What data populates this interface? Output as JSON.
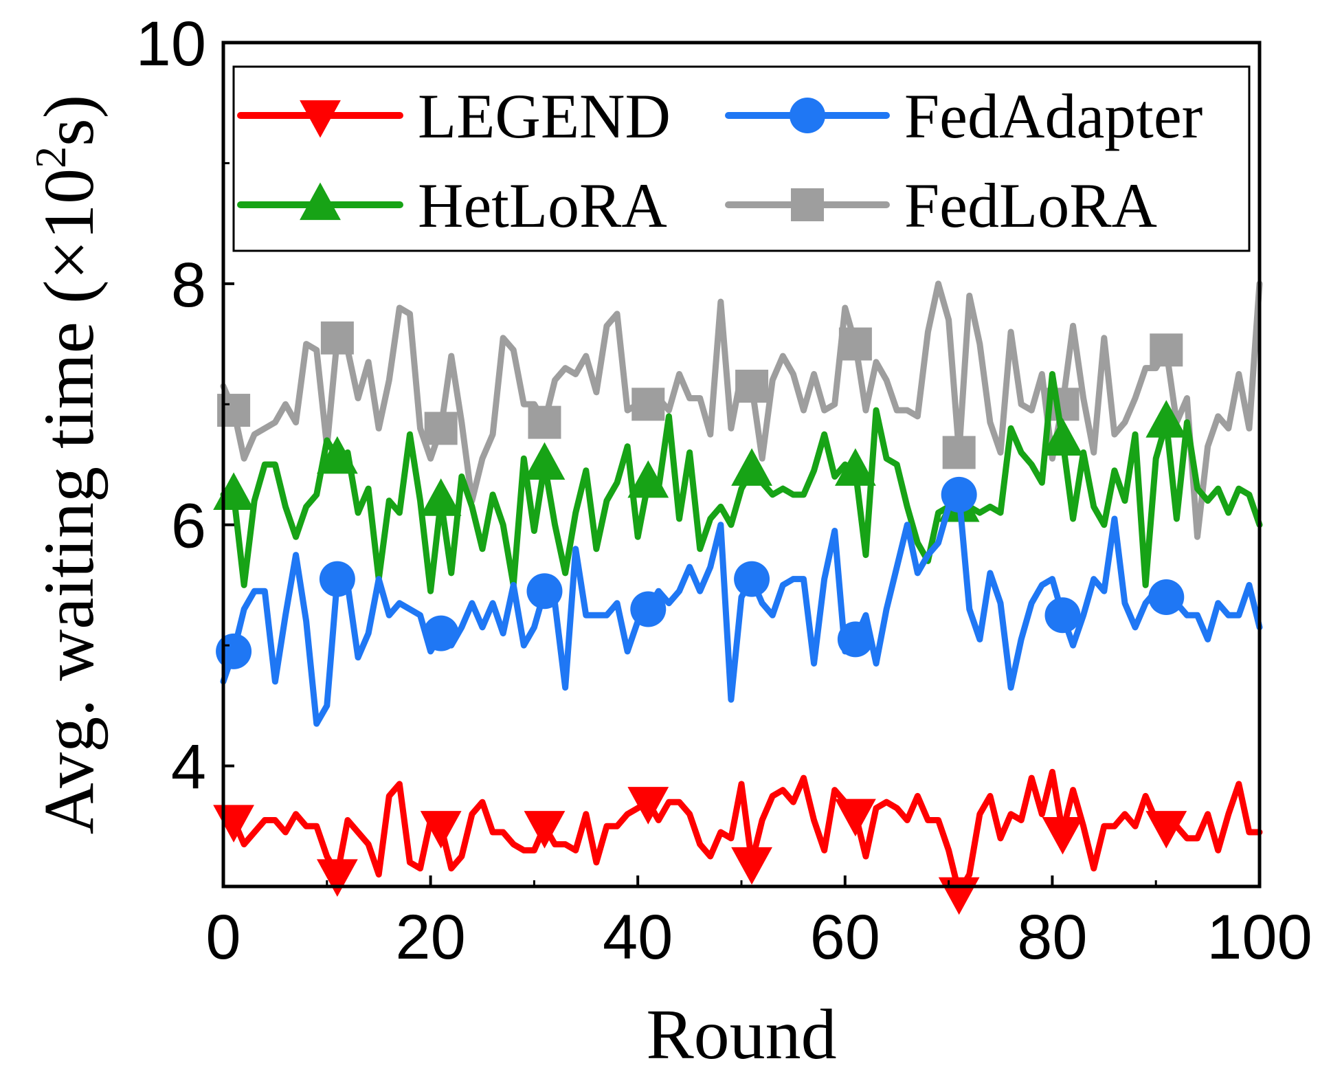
{
  "chart_data": {
    "type": "line",
    "xlabel": "Round",
    "ylabel": "Avg. waiting time (×10²s)",
    "ylabel_parts": {
      "base": "Avg. waiting time (×10",
      "sup": "2",
      "tail": "s)"
    },
    "xlim": [
      0,
      100
    ],
    "ylim": [
      3,
      10
    ],
    "xticks": [
      0,
      20,
      40,
      60,
      80,
      100
    ],
    "yticks": [
      4,
      6,
      8,
      10
    ],
    "grid": false,
    "legend_position": "top",
    "series": [
      {
        "name": "LEGEND",
        "color": "#ff0000",
        "marker": "triangle-down",
        "values": [
          3.6,
          3.55,
          3.35,
          3.45,
          3.55,
          3.55,
          3.45,
          3.6,
          3.5,
          3.5,
          3.25,
          3.1,
          3.55,
          3.45,
          3.35,
          3.1,
          3.75,
          3.85,
          3.2,
          3.15,
          3.55,
          3.5,
          3.15,
          3.25,
          3.6,
          3.7,
          3.45,
          3.45,
          3.35,
          3.3,
          3.3,
          3.5,
          3.35,
          3.35,
          3.3,
          3.6,
          3.2,
          3.5,
          3.5,
          3.6,
          3.65,
          3.7,
          3.55,
          3.7,
          3.7,
          3.6,
          3.35,
          3.25,
          3.45,
          3.4,
          3.85,
          3.2,
          3.55,
          3.75,
          3.8,
          3.7,
          3.9,
          3.55,
          3.3,
          3.8,
          3.7,
          3.6,
          3.25,
          3.65,
          3.7,
          3.65,
          3.55,
          3.75,
          3.55,
          3.55,
          3.3,
          2.95,
          3.1,
          3.6,
          3.75,
          3.4,
          3.6,
          3.55,
          3.9,
          3.6,
          3.95,
          3.45,
          3.8,
          3.5,
          3.15,
          3.5,
          3.5,
          3.6,
          3.5,
          3.75,
          3.55,
          3.5,
          3.5,
          3.4,
          3.4,
          3.6,
          3.3,
          3.6,
          3.85,
          3.45,
          3.45
        ]
      },
      {
        "name": "FedAdapter",
        "color": "#1f77f4",
        "marker": "circle",
        "values": [
          4.7,
          4.95,
          5.3,
          5.45,
          5.45,
          4.7,
          5.25,
          5.75,
          5.2,
          4.35,
          4.5,
          5.55,
          5.5,
          4.9,
          5.1,
          5.55,
          5.25,
          5.35,
          5.3,
          5.25,
          4.95,
          5.1,
          5.0,
          5.15,
          5.35,
          5.15,
          5.35,
          5.1,
          5.5,
          5.0,
          5.15,
          5.45,
          5.35,
          4.65,
          5.8,
          5.25,
          5.25,
          5.25,
          5.35,
          4.95,
          5.2,
          5.3,
          5.45,
          5.35,
          5.45,
          5.65,
          5.45,
          5.65,
          6.0,
          4.55,
          5.4,
          5.55,
          5.35,
          5.25,
          5.5,
          5.55,
          5.55,
          4.85,
          5.55,
          5.95,
          4.95,
          5.05,
          5.25,
          4.85,
          5.3,
          5.65,
          6.0,
          5.6,
          5.75,
          5.85,
          6.15,
          6.25,
          5.3,
          5.05,
          5.6,
          5.35,
          4.65,
          5.05,
          5.35,
          5.5,
          5.55,
          5.25,
          5.0,
          5.25,
          5.55,
          5.45,
          6.05,
          5.35,
          5.15,
          5.35,
          5.45,
          5.4,
          5.35,
          5.25,
          5.25,
          5.05,
          5.35,
          5.25,
          5.25,
          5.5,
          5.15
        ]
      },
      {
        "name": "HetLoRA",
        "color": "#17a316",
        "marker": "triangle-up",
        "values": [
          6.25,
          6.25,
          5.5,
          6.2,
          6.5,
          6.5,
          6.15,
          5.9,
          6.15,
          6.25,
          6.7,
          6.55,
          6.6,
          6.1,
          6.3,
          5.55,
          6.2,
          6.1,
          6.75,
          6.2,
          5.45,
          6.2,
          5.6,
          6.4,
          6.15,
          5.8,
          6.25,
          6.0,
          5.5,
          6.55,
          5.95,
          6.5,
          6.0,
          5.6,
          6.1,
          6.45,
          5.8,
          6.2,
          6.35,
          6.65,
          5.9,
          6.35,
          6.3,
          6.9,
          6.05,
          6.6,
          5.8,
          6.05,
          6.15,
          6.0,
          6.3,
          6.45,
          6.35,
          6.25,
          6.3,
          6.25,
          6.25,
          6.45,
          6.75,
          6.4,
          6.5,
          6.45,
          5.75,
          6.95,
          6.55,
          6.5,
          6.15,
          5.85,
          5.7,
          6.1,
          6.15,
          6.15,
          6.15,
          6.1,
          6.15,
          6.1,
          6.8,
          6.6,
          6.5,
          6.35,
          7.25,
          6.7,
          6.05,
          6.6,
          6.15,
          6.0,
          6.45,
          6.2,
          6.75,
          5.5,
          6.55,
          6.85,
          6.05,
          6.85,
          6.3,
          6.2,
          6.3,
          6.1,
          6.3,
          6.25,
          6.0
        ]
      },
      {
        "name": "FedLoRA",
        "color": "#9e9e9e",
        "marker": "square",
        "values": [
          7.15,
          6.95,
          6.55,
          6.75,
          6.8,
          6.85,
          7.0,
          6.85,
          7.5,
          7.45,
          6.65,
          7.55,
          7.45,
          7.05,
          7.35,
          6.8,
          7.2,
          7.8,
          7.75,
          6.8,
          6.55,
          6.8,
          7.4,
          6.85,
          6.2,
          6.55,
          6.75,
          7.55,
          7.45,
          7.0,
          7.0,
          6.85,
          7.2,
          7.3,
          7.25,
          7.4,
          7.1,
          7.65,
          7.75,
          6.95,
          7.0,
          7.0,
          7.05,
          6.95,
          7.25,
          7.05,
          7.05,
          6.75,
          7.85,
          6.8,
          7.25,
          7.15,
          6.55,
          7.2,
          7.4,
          7.25,
          6.95,
          7.25,
          6.95,
          7.0,
          7.8,
          7.5,
          6.95,
          7.35,
          7.2,
          6.95,
          6.95,
          6.9,
          7.6,
          8.0,
          7.7,
          6.6,
          7.9,
          7.5,
          6.85,
          6.6,
          7.6,
          7.0,
          6.95,
          7.25,
          6.55,
          7.0,
          7.65,
          7.05,
          6.6,
          7.55,
          6.75,
          6.85,
          7.05,
          7.3,
          7.3,
          7.45,
          6.85,
          7.05,
          5.9,
          6.65,
          6.9,
          6.8,
          7.25,
          6.8,
          8.0
        ]
      }
    ]
  }
}
